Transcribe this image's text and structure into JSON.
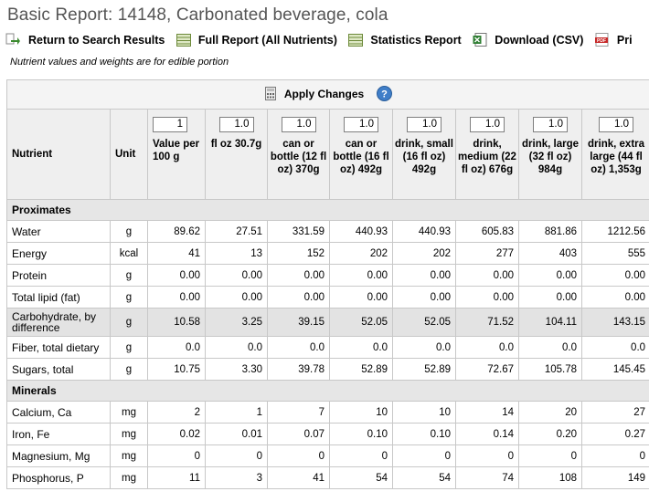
{
  "page": {
    "title": "Basic Report:  14148, Carbonated beverage, cola",
    "note": "Nutrient values and weights are for edible portion"
  },
  "toolbar": {
    "return_label": "Return to Search Results",
    "full_report_label": "Full Report (All Nutrients)",
    "statistics_label": "Statistics Report",
    "download_label": "Download (CSV)",
    "print_label": "Pri"
  },
  "apply": {
    "label": "Apply Changes"
  },
  "columns": {
    "nutrient": "Nutrient",
    "unit": "Unit",
    "measures": [
      {
        "qty": "1",
        "label": "Value per 100 g"
      },
      {
        "qty": "1.0",
        "label": "fl oz 30.7g"
      },
      {
        "qty": "1.0",
        "label": "can or bottle (12 fl oz) 370g"
      },
      {
        "qty": "1.0",
        "label": "can or bottle (16 fl oz) 492g"
      },
      {
        "qty": "1.0",
        "label": "drink, small (16 fl oz) 492g"
      },
      {
        "qty": "1.0",
        "label": "drink, medium (22 fl oz) 676g"
      },
      {
        "qty": "1.0",
        "label": "drink, large (32 fl oz) 984g"
      },
      {
        "qty": "1.0",
        "label": "drink, extra large (44 fl oz) 1,353g"
      }
    ]
  },
  "sections": [
    {
      "name": "Proximates",
      "rows": [
        {
          "name": "Water",
          "unit": "g",
          "values": [
            "89.62",
            "27.51",
            "331.59",
            "440.93",
            "440.93",
            "605.83",
            "881.86",
            "1212.56"
          ]
        },
        {
          "name": "Energy",
          "unit": "kcal",
          "values": [
            "41",
            "13",
            "152",
            "202",
            "202",
            "277",
            "403",
            "555"
          ]
        },
        {
          "name": "Protein",
          "unit": "g",
          "values": [
            "0.00",
            "0.00",
            "0.00",
            "0.00",
            "0.00",
            "0.00",
            "0.00",
            "0.00"
          ]
        },
        {
          "name": "Total lipid (fat)",
          "unit": "g",
          "values": [
            "0.00",
            "0.00",
            "0.00",
            "0.00",
            "0.00",
            "0.00",
            "0.00",
            "0.00"
          ]
        },
        {
          "name": "Carbohydrate, by difference",
          "unit": "g",
          "values": [
            "10.58",
            "3.25",
            "39.15",
            "52.05",
            "52.05",
            "71.52",
            "104.11",
            "143.15"
          ]
        },
        {
          "name": "Fiber, total dietary",
          "unit": "g",
          "values": [
            "0.0",
            "0.0",
            "0.0",
            "0.0",
            "0.0",
            "0.0",
            "0.0",
            "0.0"
          ]
        },
        {
          "name": "Sugars, total",
          "unit": "g",
          "values": [
            "10.75",
            "3.30",
            "39.78",
            "52.89",
            "52.89",
            "72.67",
            "105.78",
            "145.45"
          ]
        }
      ]
    },
    {
      "name": "Minerals",
      "rows": [
        {
          "name": "Calcium, Ca",
          "unit": "mg",
          "values": [
            "2",
            "1",
            "7",
            "10",
            "10",
            "14",
            "20",
            "27"
          ]
        },
        {
          "name": "Iron, Fe",
          "unit": "mg",
          "values": [
            "0.02",
            "0.01",
            "0.07",
            "0.10",
            "0.10",
            "0.14",
            "0.20",
            "0.27"
          ]
        },
        {
          "name": "Magnesium, Mg",
          "unit": "mg",
          "values": [
            "0",
            "0",
            "0",
            "0",
            "0",
            "0",
            "0",
            "0"
          ]
        },
        {
          "name": "Phosphorus, P",
          "unit": "mg",
          "values": [
            "11",
            "3",
            "41",
            "54",
            "54",
            "74",
            "108",
            "149"
          ]
        }
      ]
    }
  ],
  "colors": {
    "title": "#555555",
    "header_bg": "#efefef",
    "section_bg": "#e6e6e6",
    "shaded_row": "#e3e3e3",
    "border": "#c8c8c8"
  }
}
